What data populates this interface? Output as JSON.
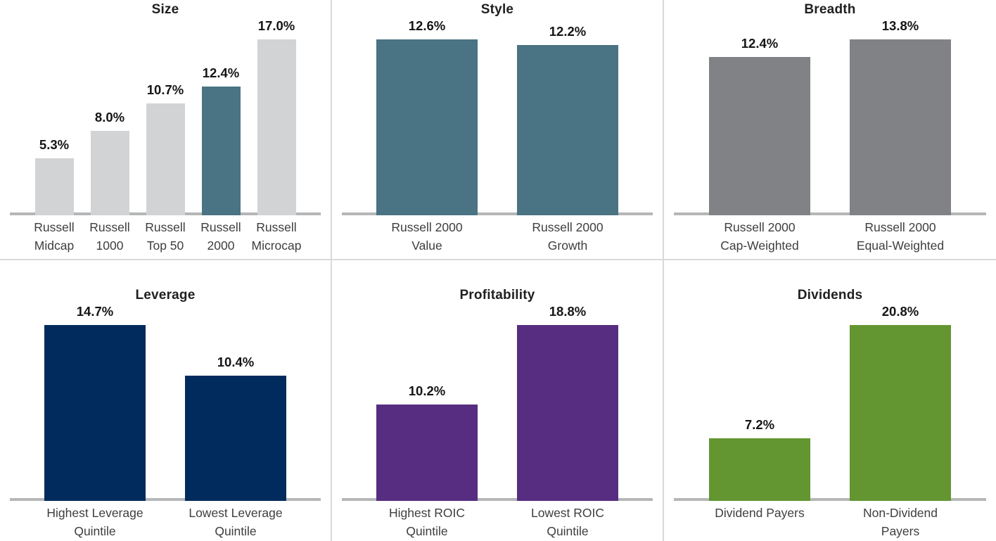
{
  "figure": {
    "description": "Six-panel small-multiples bar chart comparing returns across small-cap factor groupings",
    "unit": "%",
    "colors": {
      "light_gray": "#d1d3d4",
      "teal": "#4a7383",
      "medium_gray": "#808285",
      "navy": "#002b5c",
      "purple": "#562d80",
      "green": "#639631",
      "axis_line": "#b4b6b8",
      "panel_divider": "#d8d9da",
      "title_text": "#1f1f1f",
      "value_text": "#151515",
      "category_text": "#3e3e40"
    }
  },
  "chart_data": [
    {
      "type": "bar",
      "title": "Size",
      "categories": [
        [
          "Russell",
          "Midcap"
        ],
        [
          "Russell",
          "1000"
        ],
        [
          "Russell",
          "Top 50"
        ],
        [
          "Russell",
          "2000"
        ],
        [
          "Russell",
          "Microcap"
        ]
      ],
      "values": [
        5.3,
        8.0,
        10.7,
        12.4,
        17.0
      ],
      "value_labels": [
        "5.3%",
        "8.0%",
        "10.7%",
        "12.4%",
        "17.0%"
      ],
      "bar_colors": [
        "#d1d3d4",
        "#d1d3d4",
        "#d1d3d4",
        "#4a7383",
        "#d1d3d4"
      ],
      "ylim": [
        0,
        17.0
      ],
      "gridlines": false,
      "legend": "none",
      "value_label_position": "above-bar"
    },
    {
      "type": "bar",
      "title": "Style",
      "categories": [
        [
          "Russell 2000",
          "Value"
        ],
        [
          "Russell 2000",
          "Growth"
        ]
      ],
      "values": [
        12.6,
        12.2
      ],
      "value_labels": [
        "12.6%",
        "12.2%"
      ],
      "bar_colors": [
        "#4a7383",
        "#4a7383"
      ],
      "ylim": [
        0,
        12.6
      ],
      "gridlines": false,
      "legend": "none",
      "value_label_position": "above-bar"
    },
    {
      "type": "bar",
      "title": "Breadth",
      "categories": [
        [
          "Russell 2000",
          "Cap-Weighted"
        ],
        [
          "Russell 2000",
          "Equal-Weighted"
        ]
      ],
      "values": [
        12.4,
        13.8
      ],
      "value_labels": [
        "12.4%",
        "13.8%"
      ],
      "bar_colors": [
        "#808285",
        "#808285"
      ],
      "ylim": [
        0,
        13.8
      ],
      "gridlines": false,
      "legend": "none",
      "value_label_position": "above-bar"
    },
    {
      "type": "bar",
      "title": "Leverage",
      "categories": [
        [
          "Highest Leverage",
          "Quintile"
        ],
        [
          "Lowest Leverage",
          "Quintile"
        ]
      ],
      "values": [
        14.7,
        10.4
      ],
      "value_labels": [
        "14.7%",
        "10.4%"
      ],
      "bar_colors": [
        "#002b5c",
        "#002b5c"
      ],
      "ylim": [
        0,
        14.7
      ],
      "gridlines": false,
      "legend": "none",
      "value_label_position": "above-bar"
    },
    {
      "type": "bar",
      "title": "Profitability",
      "categories": [
        [
          "Highest ROIC",
          "Quintile"
        ],
        [
          "Lowest ROIC",
          "Quintile"
        ]
      ],
      "values": [
        10.2,
        18.8
      ],
      "value_labels": [
        "10.2%",
        "18.8%"
      ],
      "bar_colors": [
        "#562d80",
        "#562d80"
      ],
      "ylim": [
        0,
        18.8
      ],
      "gridlines": false,
      "legend": "none",
      "value_label_position": "above-bar"
    },
    {
      "type": "bar",
      "title": "Dividends",
      "categories": [
        [
          "Dividend Payers"
        ],
        [
          "Non-Dividend",
          "Payers"
        ]
      ],
      "values": [
        7.2,
        20.8
      ],
      "value_labels": [
        "7.2%",
        "20.8%"
      ],
      "bar_colors": [
        "#639631",
        "#639631"
      ],
      "ylim": [
        0,
        20.8
      ],
      "gridlines": false,
      "legend": "none",
      "value_label_position": "above-bar"
    }
  ]
}
